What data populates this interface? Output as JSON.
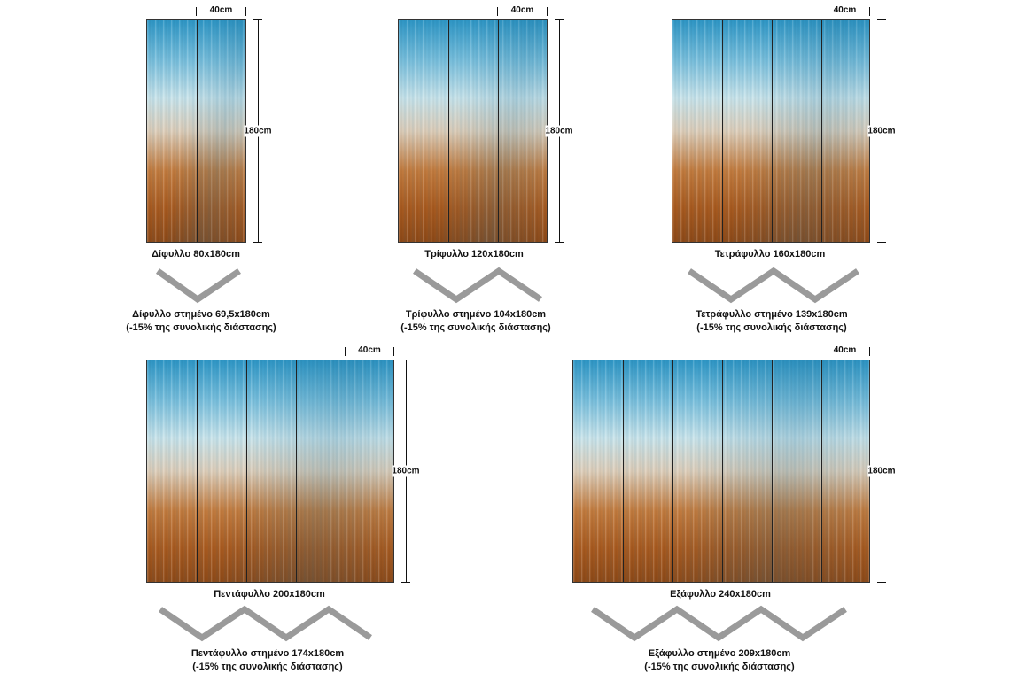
{
  "dimensions": {
    "width_label": "40cm",
    "height_label": "180cm"
  },
  "panels": [
    {
      "caption": "Δίφυλλο  80x180cm",
      "fold_line1": "Δίφυλλο στημένο 69,5x180cm",
      "fold_line2": "(-15% της συνολικής διάστασης)"
    },
    {
      "caption": "Τρίφυλλο  120x180cm",
      "fold_line1": "Τρίφυλλο στημένο 104x180cm",
      "fold_line2": "(-15% της συνολικής διάστασης)"
    },
    {
      "caption": "Τετράφυλλο  160x180cm",
      "fold_line1": "Τετράφυλλο στημένο 139x180cm",
      "fold_line2": "(-15% της συνολικής διάστασης)"
    },
    {
      "caption": "Πεντάφυλλο  200x180cm",
      "fold_line1": "Πεντάφυλλο στημένο 174x180cm",
      "fold_line2": "(-15% της συνολικής διάστασης)"
    },
    {
      "caption": "Εξάφυλλο  240x180cm",
      "fold_line1": "Εξάφυλλο στημένο 209x180cm",
      "fold_line2": "(-15% της συνολικής διάστασης)"
    }
  ],
  "colors": {
    "fold_stroke": "#9a9a9a",
    "sky_blue": "#2f97c6",
    "rust": "#a85a1f"
  }
}
